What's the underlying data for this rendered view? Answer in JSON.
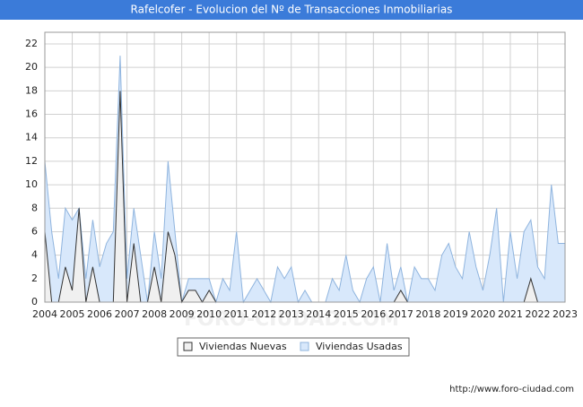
{
  "chart_data": {
    "type": "area",
    "title": "Rafelcofer - Evolucion del Nº de Transacciones Inmobiliarias",
    "source": "http://www.foro-ciudad.com",
    "watermark": "FORO-CIUDAD.COM",
    "x": [
      2004,
      2004.25,
      2004.5,
      2004.75,
      2005,
      2005.25,
      2005.5,
      2005.75,
      2006,
      2006.25,
      2006.5,
      2006.75,
      2007,
      2007.25,
      2007.5,
      2007.75,
      2008,
      2008.25,
      2008.5,
      2008.75,
      2009,
      2009.25,
      2009.5,
      2009.75,
      2010,
      2010.25,
      2010.5,
      2010.75,
      2011,
      2011.25,
      2011.5,
      2011.75,
      2012,
      2012.25,
      2012.5,
      2012.75,
      2013,
      2013.25,
      2013.5,
      2013.75,
      2014,
      2014.25,
      2014.5,
      2014.75,
      2015,
      2015.25,
      2015.5,
      2015.75,
      2016,
      2016.25,
      2016.5,
      2016.75,
      2017,
      2017.25,
      2017.5,
      2017.75,
      2018,
      2018.25,
      2018.5,
      2018.75,
      2019,
      2019.25,
      2019.5,
      2019.75,
      2020,
      2020.25,
      2020.5,
      2020.75,
      2021,
      2021.25,
      2021.5,
      2021.75,
      2022,
      2022.25,
      2022.5,
      2022.75,
      2023
    ],
    "series": [
      {
        "name": "Viviendas Usadas",
        "color": "#d8e8fb",
        "line_color": "#8fb4de",
        "values": [
          12,
          6,
          2,
          8,
          7,
          8,
          2,
          7,
          3,
          5,
          6,
          21,
          2,
          8,
          4,
          0,
          6,
          2,
          12,
          6,
          0,
          2,
          2,
          2,
          2,
          0,
          2,
          1,
          6,
          0,
          1,
          2,
          1,
          0,
          3,
          2,
          3,
          0,
          1,
          0,
          0,
          0,
          2,
          1,
          4,
          1,
          0,
          2,
          3,
          0,
          5,
          1,
          3,
          0,
          3,
          2,
          2,
          1,
          4,
          5,
          3,
          2,
          6,
          3,
          1,
          4,
          8,
          0,
          6,
          2,
          6,
          7,
          3,
          2,
          10,
          5,
          5
        ]
      },
      {
        "name": "Viviendas Nuevas",
        "color": "#f0f0f0",
        "line_color": "#333333",
        "values": [
          6,
          0,
          0,
          3,
          1,
          8,
          0,
          3,
          0,
          0,
          0,
          18,
          0,
          5,
          0,
          0,
          3,
          0,
          6,
          4,
          0,
          1,
          1,
          0,
          1,
          0,
          0,
          0,
          0,
          0,
          0,
          0,
          0,
          0,
          0,
          0,
          0,
          0,
          0,
          0,
          0,
          0,
          0,
          0,
          0,
          0,
          0,
          0,
          0,
          0,
          0,
          0,
          1,
          0,
          0,
          0,
          0,
          0,
          0,
          0,
          0,
          0,
          0,
          0,
          0,
          0,
          0,
          0,
          0,
          0,
          0,
          2,
          0,
          0,
          0,
          0,
          0
        ]
      }
    ],
    "xlim": [
      2004,
      2023
    ],
    "xticks": [
      2004,
      2005,
      2006,
      2007,
      2008,
      2009,
      2010,
      2011,
      2012,
      2013,
      2014,
      2015,
      2016,
      2017,
      2018,
      2019,
      2020,
      2021,
      2022,
      2023
    ],
    "ylim": [
      0,
      22
    ],
    "yticks": [
      0,
      2,
      4,
      6,
      8,
      10,
      12,
      14,
      16,
      18,
      20,
      22
    ],
    "grid": true
  }
}
